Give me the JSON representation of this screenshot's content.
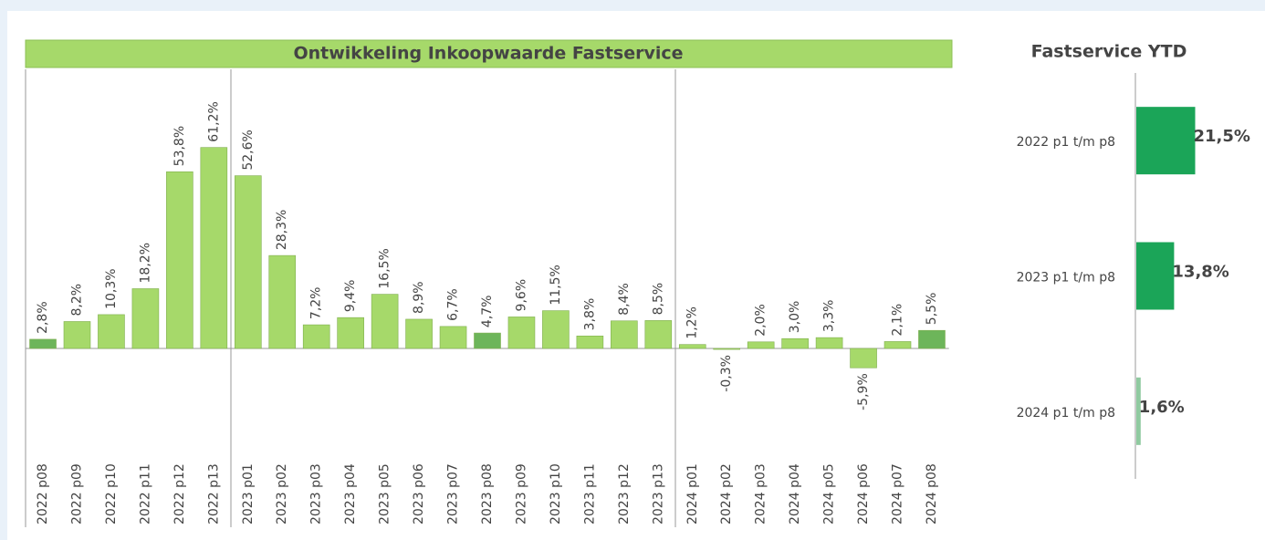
{
  "chart_data": [
    {
      "type": "bar",
      "title": "Ontwikkeling Inkoopwaarde Fastservice",
      "categories": [
        "2022 p08",
        "2022 p09",
        "2022 p10",
        "2022 p11",
        "2022 p12",
        "2022 p13",
        "2023 p01",
        "2023 p02",
        "2023 p03",
        "2023 p04",
        "2023 p05",
        "2023 p06",
        "2023 p07",
        "2023 p08",
        "2023 p09",
        "2023 p10",
        "2023 p11",
        "2023 p12",
        "2023 p13",
        "2024 p01",
        "2024 p02",
        "2024 p03",
        "2024 p04",
        "2024 p05",
        "2024 p06",
        "2024 p07",
        "2024 p08"
      ],
      "values": [
        2.8,
        8.2,
        10.3,
        18.2,
        53.8,
        61.2,
        52.6,
        28.3,
        7.2,
        9.4,
        16.5,
        8.9,
        6.7,
        4.7,
        9.6,
        11.5,
        3.8,
        8.4,
        8.5,
        1.2,
        -0.3,
        2.0,
        3.0,
        3.3,
        -5.9,
        2.1,
        5.5
      ],
      "value_labels": [
        "2,8%",
        "8,2%",
        "10,3%",
        "18,2%",
        "53,8%",
        "61,2%",
        "52,6%",
        "28,3%",
        "7,2%",
        "9,4%",
        "16,5%",
        "8,9%",
        "6,7%",
        "4,7%",
        "9,6%",
        "11,5%",
        "3,8%",
        "8,4%",
        "8,5%",
        "1,2%",
        "-0,3%",
        "2,0%",
        "3,0%",
        "3,3%",
        "-5,9%",
        "2,1%",
        "5,5%"
      ],
      "colors": [
        "#6db55a",
        "#a6d96a",
        "#a6d96a",
        "#a6d96a",
        "#a6d96a",
        "#a6d96a",
        "#a6d96a",
        "#a6d96a",
        "#a6d96a",
        "#a6d96a",
        "#a6d96a",
        "#a6d96a",
        "#a6d96a",
        "#6db55a",
        "#a6d96a",
        "#a6d96a",
        "#a6d96a",
        "#a6d96a",
        "#a6d96a",
        "#a6d96a",
        "#a6d96a",
        "#a6d96a",
        "#a6d96a",
        "#a6d96a",
        "#a6d96a",
        "#a6d96a",
        "#6db55a"
      ],
      "ylim": [
        -10,
        80
      ]
    },
    {
      "type": "hbar",
      "title": "Fastservice YTD",
      "categories": [
        "2022 p1 t/m p8",
        "2023 p1 t/m p8",
        "2024 p1 t/m p8"
      ],
      "values": [
        21.5,
        13.8,
        1.6
      ],
      "value_labels": [
        "21,5%",
        "13,8%",
        "1,6%"
      ],
      "colors": [
        "#1ba558",
        "#1ba558",
        "#8fcaa0"
      ],
      "xlim": [
        0,
        30
      ]
    }
  ]
}
